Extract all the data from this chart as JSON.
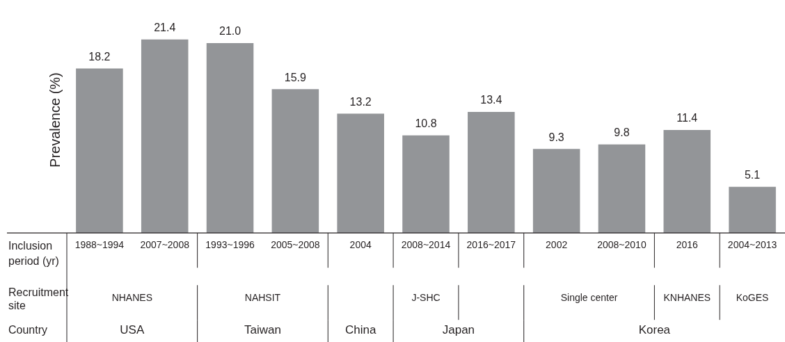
{
  "chart_data": {
    "type": "bar",
    "ylabel": "Prevalence (%)",
    "categories": [
      "1988~1994",
      "2007~2008",
      "1993~1996",
      "2005~2008",
      "2004",
      "2008~2014",
      "2016~2017",
      "2002",
      "2008~2010",
      "2016",
      "2004~2013"
    ],
    "values": [
      18.2,
      21.4,
      21.0,
      15.9,
      13.2,
      10.8,
      13.4,
      9.3,
      9.8,
      11.4,
      5.1
    ],
    "value_labels": [
      "18.2",
      "21.4",
      "21.0",
      "15.9",
      "13.2",
      "10.8",
      "13.4",
      "9.3",
      "9.8",
      "11.4",
      "5.1"
    ],
    "color": "#939598",
    "grid": false,
    "legend": false,
    "annotations": [
      "Inclusion period (yr)",
      "Recruitment site",
      "Country",
      "NHANES",
      "NAHSIT",
      "J-SHC",
      "Single center",
      "KNHANES",
      "KoGES",
      "USA",
      "Taiwan",
      "China",
      "Japan",
      "Korea"
    ]
  }
}
